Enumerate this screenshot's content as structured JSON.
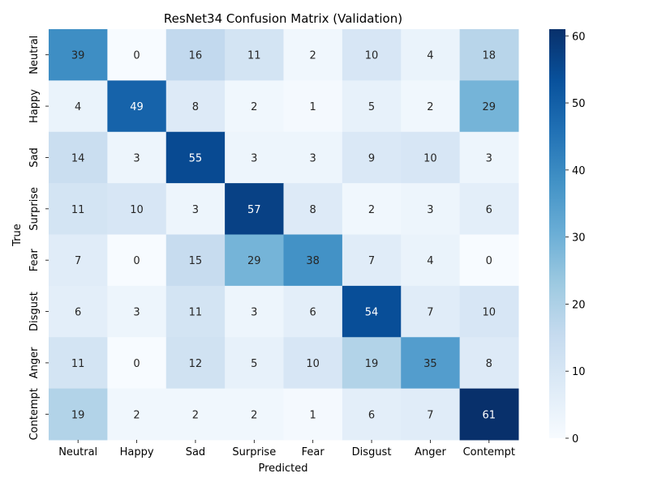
{
  "chart_data": {
    "type": "heatmap",
    "title": "ResNet34 Confusion Matrix (Validation)",
    "xlabel": "Predicted",
    "ylabel": "True",
    "x_categories": [
      "Neutral",
      "Happy",
      "Sad",
      "Surprise",
      "Fear",
      "Disgust",
      "Anger",
      "Contempt"
    ],
    "y_categories": [
      "Neutral",
      "Happy",
      "Sad",
      "Surprise",
      "Fear",
      "Disgust",
      "Anger",
      "Contempt"
    ],
    "values": [
      [
        39,
        0,
        16,
        11,
        2,
        10,
        4,
        18
      ],
      [
        4,
        49,
        8,
        2,
        1,
        5,
        2,
        29
      ],
      [
        14,
        3,
        55,
        3,
        3,
        9,
        10,
        3
      ],
      [
        11,
        10,
        3,
        57,
        8,
        2,
        3,
        6
      ],
      [
        7,
        0,
        15,
        29,
        38,
        7,
        4,
        0
      ],
      [
        6,
        3,
        11,
        3,
        6,
        54,
        7,
        10
      ],
      [
        11,
        0,
        12,
        5,
        10,
        19,
        35,
        8
      ],
      [
        19,
        2,
        2,
        2,
        1,
        6,
        7,
        61
      ]
    ],
    "colormap": "Blues",
    "colorbar": {
      "range": [
        0,
        61
      ],
      "ticks": [
        0,
        10,
        20,
        30,
        40,
        50,
        60
      ]
    }
  }
}
